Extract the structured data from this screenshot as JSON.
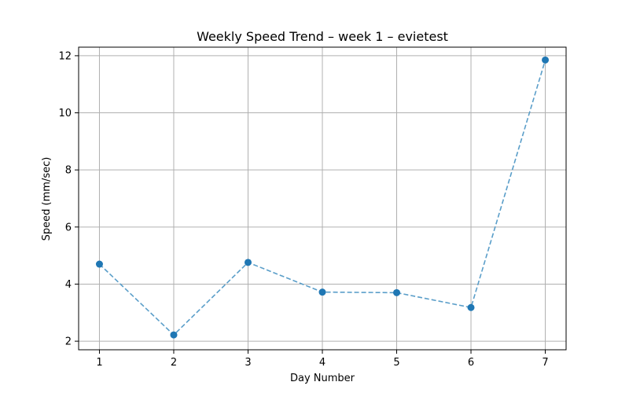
{
  "chart_data": {
    "type": "line",
    "title": "Weekly Speed Trend – week 1 – evietest",
    "xlabel": "Day Number",
    "ylabel": "Speed (mm/sec)",
    "x": [
      1,
      2,
      3,
      4,
      5,
      6,
      7
    ],
    "series": [
      {
        "values": [
          4.7,
          2.22,
          4.76,
          3.72,
          3.7,
          3.18,
          11.85
        ]
      }
    ],
    "xlim": [
      0.72,
      7.28
    ],
    "ylim": [
      1.7,
      12.3
    ],
    "xticks": [
      1,
      2,
      3,
      4,
      5,
      6,
      7
    ],
    "yticks": [
      2,
      4,
      6,
      8,
      10,
      12
    ],
    "grid": true,
    "line_style": "dashed",
    "marker": "circle",
    "colors": {
      "line": "#5a9ec9",
      "marker": "#1f77b4"
    }
  }
}
